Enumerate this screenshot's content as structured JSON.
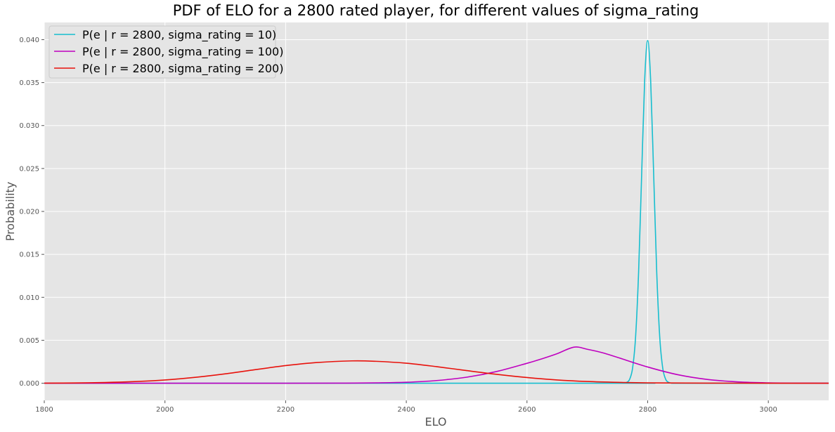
{
  "chart_data": {
    "type": "line",
    "title": "PDF of ELO for a 2800 rated player, for different values of sigma_rating",
    "xlabel": "ELO",
    "ylabel": "Probability",
    "xlim": [
      1800,
      3100
    ],
    "ylim": [
      -0.002,
      0.042
    ],
    "x_ticks": [
      1800,
      2000,
      2200,
      2400,
      2600,
      2800,
      3000
    ],
    "y_ticks": [
      0.0,
      0.005,
      0.01,
      0.015,
      0.02,
      0.025,
      0.03,
      0.035,
      0.04
    ],
    "x_tick_labels": [
      "1800",
      "2000",
      "2200",
      "2400",
      "2600",
      "2800",
      "3000"
    ],
    "y_tick_labels": [
      "0.000",
      "0.005",
      "0.010",
      "0.015",
      "0.020",
      "0.025",
      "0.030",
      "0.035",
      "0.040"
    ],
    "grid": true,
    "legend_position": "top-left",
    "background_color": "#e5e5e5",
    "grid_color": "#ffffff",
    "series": [
      {
        "name": "P(e | r = 2800, sigma_rating = 10)",
        "color": "#17becf",
        "x": [
          1800,
          2740,
          2750,
          2760,
          2765,
          2770,
          2775,
          2780,
          2785,
          2790,
          2795,
          2800,
          2805,
          2810,
          2815,
          2820,
          2825,
          2830,
          2835,
          2840,
          2850,
          2860,
          3100
        ],
        "y": [
          0.0,
          0.0,
          0.0,
          1e-05,
          9e-05,
          0.00044,
          0.00175,
          0.0054,
          0.01295,
          0.0242,
          0.0352,
          0.0399,
          0.0352,
          0.0242,
          0.01295,
          0.0054,
          0.00175,
          0.00044,
          9e-05,
          1e-05,
          0.0,
          0.0,
          0.0
        ]
      },
      {
        "name": "P(e | r = 2800, sigma_rating = 100)",
        "color": "#bf00bf",
        "x": [
          1800,
          2200,
          2300,
          2350,
          2400,
          2450,
          2500,
          2550,
          2600,
          2625,
          2650,
          2678,
          2700,
          2725,
          2750,
          2800,
          2850,
          2900,
          2950,
          3000,
          3050,
          3100
        ],
        "y": [
          0.0,
          0.0,
          1e-05,
          4e-05,
          0.00011,
          0.00031,
          0.0007,
          0.00137,
          0.00232,
          0.00285,
          0.00344,
          0.0042,
          0.00395,
          0.00355,
          0.00301,
          0.00189,
          0.00099,
          0.00043,
          0.00015,
          4e-05,
          1e-05,
          0.0
        ]
      },
      {
        "name": "P(e | r = 2800, sigma_rating = 200)",
        "color": "#e8120c",
        "x": [
          1800,
          1850,
          1900,
          1950,
          2000,
          2050,
          2100,
          2150,
          2200,
          2250,
          2310,
          2350,
          2400,
          2450,
          2500,
          2550,
          2600,
          2650,
          2700,
          2750,
          2800,
          2900,
          3000,
          3100
        ],
        "y": [
          1e-05,
          3e-05,
          8e-05,
          0.00019,
          0.00038,
          0.00068,
          0.00109,
          0.00158,
          0.00205,
          0.0024,
          0.0026,
          0.00255,
          0.00233,
          0.00193,
          0.00147,
          0.00103,
          0.00066,
          0.00038,
          0.0002,
          0.0001,
          4e-05,
          1e-05,
          0.0,
          0.0
        ]
      }
    ]
  }
}
